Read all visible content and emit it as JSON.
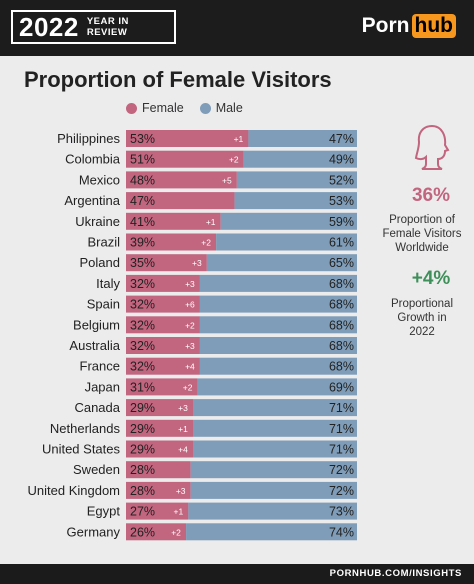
{
  "header": {
    "year": "2022",
    "year_line1": "YEAR IN",
    "year_line2": "REVIEW",
    "brand_part1": "Porn",
    "brand_part2": "hub"
  },
  "title": "Proportion of Female Visitors",
  "legend": {
    "female": "Female",
    "male": "Male"
  },
  "colors": {
    "female": "#c2657f",
    "male": "#7f9db8",
    "growth": "#3f8f5a",
    "brand_orange": "#f7971e"
  },
  "side": {
    "icon": "female-head-silhouette-icon",
    "stat1": "36%",
    "desc1_line1": "Proportion of",
    "desc1_line2": "Female Visitors",
    "desc1_line3": "Worldwide",
    "stat2": "+4%",
    "desc2_line1": "Proportional",
    "desc2_line2": "Growth in",
    "desc2_line3": "2022"
  },
  "footer": "PORNHUB.COM/INSIGHTS",
  "chart_data": {
    "type": "bar",
    "orientation": "horizontal-stacked-100",
    "title": "Proportion of Female Visitors",
    "categories": [
      "Philippines",
      "Colombia",
      "Mexico",
      "Argentina",
      "Ukraine",
      "Brazil",
      "Poland",
      "Italy",
      "Spain",
      "Belgium",
      "Australia",
      "France",
      "Japan",
      "Canada",
      "Netherlands",
      "United States",
      "Sweden",
      "United Kingdom",
      "Egypt",
      "Germany"
    ],
    "series": [
      {
        "name": "Female",
        "values": [
          53,
          51,
          48,
          47,
          41,
          39,
          35,
          32,
          32,
          32,
          32,
          32,
          31,
          29,
          29,
          29,
          28,
          28,
          27,
          26
        ]
      },
      {
        "name": "Male",
        "values": [
          47,
          49,
          52,
          53,
          59,
          61,
          65,
          68,
          68,
          68,
          68,
          68,
          69,
          71,
          71,
          71,
          72,
          72,
          73,
          74
        ]
      }
    ],
    "female_labels": [
      "53%",
      "51%",
      "48%",
      "47%",
      "41%",
      "39%",
      "35%",
      "32%",
      "32%",
      "32%",
      "32%",
      "32%",
      "31%",
      "29%",
      "29%",
      "29%",
      "28%",
      "28%",
      "27%",
      "26%"
    ],
    "male_labels": [
      "47%",
      "49%",
      "52%",
      "53%",
      "59%",
      "61%",
      "65%",
      "68%",
      "68%",
      "68%",
      "68%",
      "68%",
      "69%",
      "71%",
      "71%",
      "71%",
      "72%",
      "72%",
      "73%",
      "74%"
    ],
    "change_labels": [
      "+1",
      "+2",
      "+5",
      "",
      "+1",
      "+2",
      "+3",
      "+3",
      "+6",
      "+2",
      "+3",
      "+4",
      "+2",
      "+3",
      "+1",
      "+4",
      "",
      "+3",
      "+1",
      "+2"
    ],
    "xlim": [
      0,
      100
    ],
    "legend_position": "top"
  }
}
